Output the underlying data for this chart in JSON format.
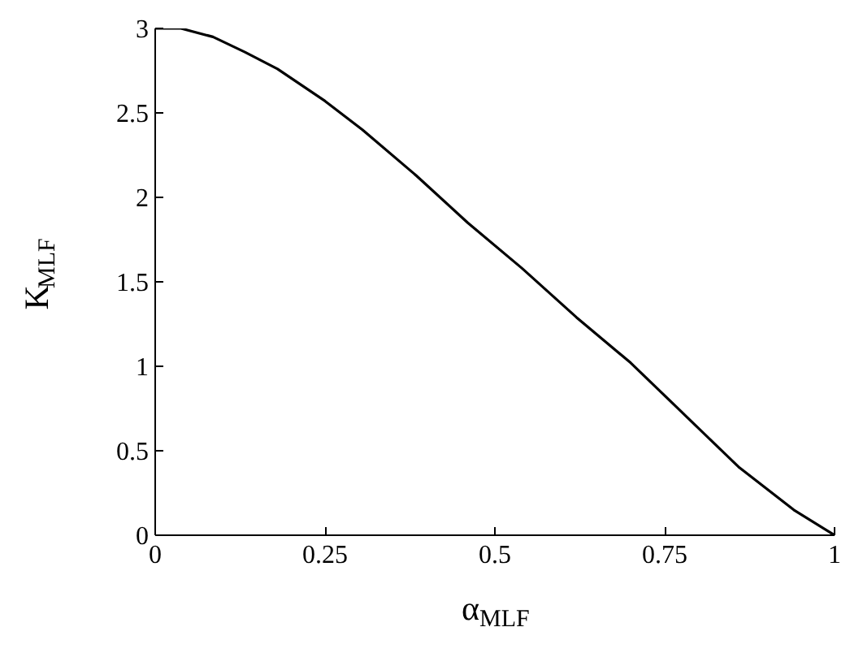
{
  "chart_data": {
    "type": "line",
    "xlabel": "α$_{MLF}$",
    "ylabel": "K$_{MLF}$",
    "color": "#000000",
    "x": [
      0,
      0.038,
      0.085,
      0.132,
      0.18,
      0.25,
      0.305,
      0.384,
      0.46,
      0.54,
      0.62,
      0.7,
      0.78,
      0.86,
      0.94,
      1.0
    ],
    "values": [
      3.0,
      3.0,
      2.95,
      2.86,
      2.76,
      2.57,
      2.4,
      2.13,
      1.85,
      1.58,
      1.29,
      1.02,
      0.71,
      0.4,
      0.15,
      0
    ],
    "xlim": [
      0,
      1
    ],
    "ylim": [
      0,
      3
    ],
    "xticks": [
      0,
      0.25,
      0.5,
      0.75,
      1
    ],
    "yticks": [
      0,
      0.5,
      1,
      1.5,
      2,
      2.5,
      3
    ],
    "grid": false,
    "marker": "none",
    "line_style": "solid"
  }
}
